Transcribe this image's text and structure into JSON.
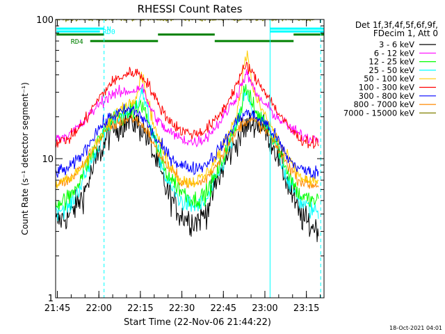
{
  "chart_data": {
    "type": "line",
    "title": "RHESSI Count Rates",
    "ylabel": "Count Rate (s⁻¹ detector segment⁻¹)",
    "xlabel": "Start Time (22-Nov-06 21:44:22)",
    "yscale": "log",
    "ylim": [
      1,
      100
    ],
    "xlim_minutes": [
      0,
      97
    ],
    "y_ticks": [
      {
        "label": "1",
        "value": 1
      },
      {
        "label": "10",
        "value": 10
      },
      {
        "label": "100",
        "value": 100
      }
    ],
    "x_ticks": [
      {
        "label": "21:45",
        "minute": 0.63
      },
      {
        "label": "22:00",
        "minute": 15.63
      },
      {
        "label": "22:15",
        "minute": 30.63
      },
      {
        "label": "22:30",
        "minute": 45.63
      },
      {
        "label": "22:45",
        "minute": 60.63
      },
      {
        "label": "23:00",
        "minute": 75.63
      },
      {
        "label": "23:15",
        "minute": 90.63
      }
    ],
    "legend": {
      "placement": "top-right, outside plot",
      "header": [
        "Det 1f,3f,4f,5f,6f,9f,",
        "FDecim 1, Att 0"
      ]
    },
    "flags": [
      {
        "label": "N",
        "color": "#00ffff",
        "y": 86,
        "segments": [
          [
            0.3,
            17.5
          ],
          [
            77.5,
            97
          ]
        ]
      },
      {
        "label": "RD0",
        "color": "#00ffff",
        "y": 82,
        "segments": [
          [
            0.3,
            16.0
          ],
          [
            77.5,
            97
          ]
        ]
      },
      {
        "label": "",
        "color": "#008000",
        "y": 78,
        "segments": [
          [
            0.3,
            17.5
          ],
          [
            37.0,
            57.5
          ],
          [
            86.0,
            97
          ]
        ]
      },
      {
        "label": "RD4",
        "color": "#008000",
        "y": 70,
        "segments": [
          [
            12.5,
            37.0
          ],
          [
            57.5,
            86.0
          ]
        ]
      }
    ],
    "markers": [
      {
        "minute": 0.0,
        "color": "#00ffff",
        "style": "solid"
      },
      {
        "minute": 17.5,
        "color": "#00ffff",
        "style": "dashed"
      },
      {
        "minute": 77.5,
        "color": "#00ffff",
        "style": "solid"
      },
      {
        "minute": 95.8,
        "color": "#00ffff",
        "style": "dashed"
      }
    ],
    "series": [
      {
        "name": "3 - 6 keV",
        "color": "#000000",
        "noise": 0.11,
        "points": [
          [
            0,
            3.5
          ],
          [
            5,
            3.9
          ],
          [
            10,
            5.5
          ],
          [
            15,
            10
          ],
          [
            20,
            16
          ],
          [
            25,
            18
          ],
          [
            28,
            18.5
          ],
          [
            32,
            16
          ],
          [
            36,
            10
          ],
          [
            40,
            6
          ],
          [
            45,
            4
          ],
          [
            50,
            3.5
          ],
          [
            54,
            4
          ],
          [
            58,
            6.5
          ],
          [
            62,
            10
          ],
          [
            66,
            14
          ],
          [
            69,
            17
          ],
          [
            72,
            18.5
          ],
          [
            76,
            16
          ],
          [
            80,
            11
          ],
          [
            84,
            6.5
          ],
          [
            88,
            4
          ],
          [
            92,
            3.3
          ],
          [
            95,
            3.2
          ]
        ]
      },
      {
        "name": "6 - 12 keV",
        "color": "#ff00ff",
        "noise": 0.045,
        "points": [
          [
            0,
            14
          ],
          [
            5,
            15
          ],
          [
            10,
            18
          ],
          [
            15,
            24
          ],
          [
            20,
            29
          ],
          [
            25,
            30
          ],
          [
            28,
            31
          ],
          [
            30,
            32
          ],
          [
            31,
            34
          ],
          [
            33,
            26
          ],
          [
            36,
            20
          ],
          [
            40,
            16
          ],
          [
            45,
            14
          ],
          [
            50,
            13
          ],
          [
            54,
            14
          ],
          [
            58,
            17
          ],
          [
            62,
            22
          ],
          [
            65,
            27
          ],
          [
            67,
            33
          ],
          [
            68,
            38
          ],
          [
            69,
            40
          ],
          [
            70,
            38
          ],
          [
            72,
            30
          ],
          [
            76,
            24
          ],
          [
            80,
            20
          ],
          [
            84,
            17
          ],
          [
            88,
            15
          ],
          [
            92,
            14
          ],
          [
            95,
            14
          ]
        ]
      },
      {
        "name": "12 - 25 keV",
        "color": "#00ff00",
        "noise": 0.07,
        "points": [
          [
            0,
            4.8
          ],
          [
            5,
            5.2
          ],
          [
            10,
            8
          ],
          [
            15,
            13
          ],
          [
            20,
            19
          ],
          [
            25,
            21
          ],
          [
            28,
            22
          ],
          [
            30,
            23
          ],
          [
            31,
            25
          ],
          [
            33,
            20
          ],
          [
            36,
            13
          ],
          [
            40,
            8
          ],
          [
            45,
            6
          ],
          [
            50,
            5
          ],
          [
            54,
            5.5
          ],
          [
            58,
            7.5
          ],
          [
            62,
            12
          ],
          [
            65,
            17
          ],
          [
            67,
            23
          ],
          [
            68,
            30
          ],
          [
            69,
            32
          ],
          [
            70,
            28
          ],
          [
            72,
            22
          ],
          [
            76,
            18
          ],
          [
            80,
            13
          ],
          [
            84,
            8
          ],
          [
            88,
            5.5
          ],
          [
            92,
            5
          ],
          [
            95,
            5
          ]
        ]
      },
      {
        "name": "25 - 50 keV",
        "color": "#00ffff",
        "noise": 0.07,
        "points": [
          [
            0,
            4.3
          ],
          [
            5,
            4.5
          ],
          [
            10,
            7
          ],
          [
            15,
            12
          ],
          [
            20,
            18
          ],
          [
            25,
            21
          ],
          [
            28,
            23
          ],
          [
            30,
            27
          ],
          [
            31,
            32
          ],
          [
            33,
            22
          ],
          [
            36,
            13
          ],
          [
            40,
            7
          ],
          [
            45,
            5
          ],
          [
            50,
            4.5
          ],
          [
            54,
            4.8
          ],
          [
            58,
            7
          ],
          [
            62,
            11
          ],
          [
            65,
            16
          ],
          [
            67,
            22
          ],
          [
            68,
            28
          ],
          [
            69,
            29
          ],
          [
            70,
            25
          ],
          [
            72,
            20
          ],
          [
            76,
            17
          ],
          [
            80,
            12
          ],
          [
            84,
            7
          ],
          [
            88,
            5
          ],
          [
            92,
            4.3
          ],
          [
            95,
            4.2
          ]
        ]
      },
      {
        "name": "50 - 100 keV",
        "color": "#ffcc00",
        "noise": 0.05,
        "points": [
          [
            0,
            6.5
          ],
          [
            5,
            7
          ],
          [
            10,
            9
          ],
          [
            15,
            13
          ],
          [
            20,
            19
          ],
          [
            25,
            24
          ],
          [
            28,
            26
          ],
          [
            30,
            33
          ],
          [
            31,
            42
          ],
          [
            33,
            28
          ],
          [
            36,
            16
          ],
          [
            40,
            10
          ],
          [
            45,
            7
          ],
          [
            50,
            6.8
          ],
          [
            54,
            7.5
          ],
          [
            58,
            10
          ],
          [
            62,
            14
          ],
          [
            65,
            20
          ],
          [
            67,
            30
          ],
          [
            68,
            48
          ],
          [
            69,
            58
          ],
          [
            70,
            45
          ],
          [
            72,
            28
          ],
          [
            76,
            20
          ],
          [
            80,
            14
          ],
          [
            84,
            10
          ],
          [
            88,
            7.5
          ],
          [
            92,
            6.8
          ],
          [
            95,
            6.8
          ]
        ]
      },
      {
        "name": "100 - 300 keV",
        "color": "#ff0000",
        "noise": 0.045,
        "points": [
          [
            0,
            13
          ],
          [
            5,
            14
          ],
          [
            10,
            18
          ],
          [
            15,
            26
          ],
          [
            20,
            35
          ],
          [
            25,
            40
          ],
          [
            28,
            42
          ],
          [
            30,
            41
          ],
          [
            33,
            36
          ],
          [
            36,
            27
          ],
          [
            40,
            20
          ],
          [
            45,
            16
          ],
          [
            50,
            15
          ],
          [
            54,
            16
          ],
          [
            58,
            19
          ],
          [
            62,
            25
          ],
          [
            65,
            33
          ],
          [
            67,
            40
          ],
          [
            68,
            44
          ],
          [
            69,
            46
          ],
          [
            70,
            45
          ],
          [
            72,
            38
          ],
          [
            76,
            30
          ],
          [
            80,
            22
          ],
          [
            84,
            17
          ],
          [
            88,
            14
          ],
          [
            92,
            13
          ],
          [
            95,
            13
          ]
        ]
      },
      {
        "name": "300 - 800 keV",
        "color": "#0000ff",
        "noise": 0.05,
        "points": [
          [
            0,
            8
          ],
          [
            5,
            8.5
          ],
          [
            10,
            11
          ],
          [
            15,
            16
          ],
          [
            20,
            20
          ],
          [
            25,
            22
          ],
          [
            28,
            22.5
          ],
          [
            30,
            21
          ],
          [
            33,
            18
          ],
          [
            36,
            14
          ],
          [
            40,
            11
          ],
          [
            45,
            9
          ],
          [
            50,
            8.5
          ],
          [
            54,
            9
          ],
          [
            58,
            11
          ],
          [
            62,
            14
          ],
          [
            65,
            18
          ],
          [
            67,
            20
          ],
          [
            69,
            21.5
          ],
          [
            72,
            20
          ],
          [
            76,
            18
          ],
          [
            80,
            14
          ],
          [
            84,
            10
          ],
          [
            88,
            8.5
          ],
          [
            92,
            8
          ],
          [
            95,
            8
          ]
        ]
      },
      {
        "name": "800 - 7000 keV",
        "color": "#ff8800",
        "noise": 0.045,
        "points": [
          [
            0,
            6.5
          ],
          [
            5,
            7
          ],
          [
            10,
            9
          ],
          [
            15,
            13
          ],
          [
            20,
            17
          ],
          [
            25,
            19
          ],
          [
            28,
            19.5
          ],
          [
            30,
            18.5
          ],
          [
            33,
            16
          ],
          [
            36,
            12
          ],
          [
            40,
            9
          ],
          [
            45,
            7
          ],
          [
            50,
            6.5
          ],
          [
            54,
            7
          ],
          [
            58,
            9
          ],
          [
            62,
            12
          ],
          [
            65,
            15
          ],
          [
            67,
            17.5
          ],
          [
            69,
            19
          ],
          [
            72,
            18.5
          ],
          [
            76,
            16
          ],
          [
            80,
            12
          ],
          [
            84,
            9
          ],
          [
            88,
            7
          ],
          [
            92,
            6.5
          ],
          [
            95,
            6.5
          ]
        ]
      },
      {
        "name": "7000 - 15000 keV",
        "color": "#808000",
        "noise": 0.01,
        "points": [
          [
            0,
            100
          ],
          [
            95,
            100
          ]
        ]
      }
    ]
  },
  "footer": {
    "date_stamp": "18-Oct-2021 04:01"
  }
}
